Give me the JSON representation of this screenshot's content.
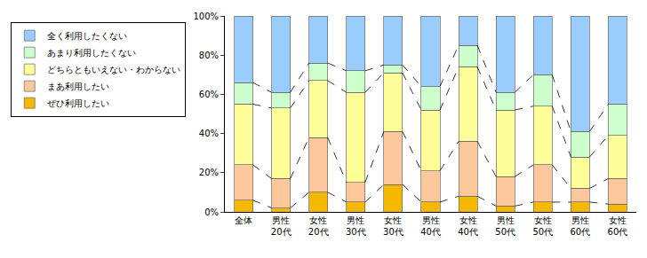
{
  "chart_data": {
    "type": "bar",
    "stacked": true,
    "categories": [
      "全体",
      "男性\n20代",
      "女性\n20代",
      "男性\n30代",
      "女性\n30代",
      "男性\n40代",
      "女性\n40代",
      "男性\n50代",
      "女性\n50代",
      "男性\n60代",
      "女性\n60代"
    ],
    "series": [
      {
        "name": "ぜひ利用したい",
        "color": "#f5b800",
        "values": [
          6,
          2,
          10,
          5,
          14,
          5,
          8,
          3,
          5,
          5,
          4
        ]
      },
      {
        "name": "まあ利用したい",
        "color": "#ffc89c",
        "values": [
          18,
          15,
          28,
          10,
          27,
          16,
          28,
          15,
          19,
          7,
          13
        ]
      },
      {
        "name": "どちらともいえない・わからない",
        "color": "#ffff99",
        "values": [
          31,
          36,
          29,
          46,
          30,
          31,
          38,
          34,
          30,
          16,
          22
        ]
      },
      {
        "name": "あまり利用したくない",
        "color": "#ccffcc",
        "values": [
          11,
          8,
          9,
          11,
          4,
          12,
          11,
          9,
          16,
          13,
          16
        ]
      },
      {
        "name": "全く利用したくない",
        "color": "#99ccff",
        "values": [
          34,
          39,
          24,
          28,
          25,
          36,
          15,
          39,
          30,
          59,
          45
        ]
      }
    ],
    "ylim": [
      0,
      100
    ],
    "yticks": [
      {
        "value": 0,
        "label": "0%"
      },
      {
        "value": 20,
        "label": "20%"
      },
      {
        "value": 40,
        "label": "40%"
      },
      {
        "value": 60,
        "label": "60%"
      },
      {
        "value": 80,
        "label": "80%"
      },
      {
        "value": 100,
        "label": "100%"
      }
    ],
    "grid": false,
    "legend": "left",
    "line_style": "dashed"
  }
}
